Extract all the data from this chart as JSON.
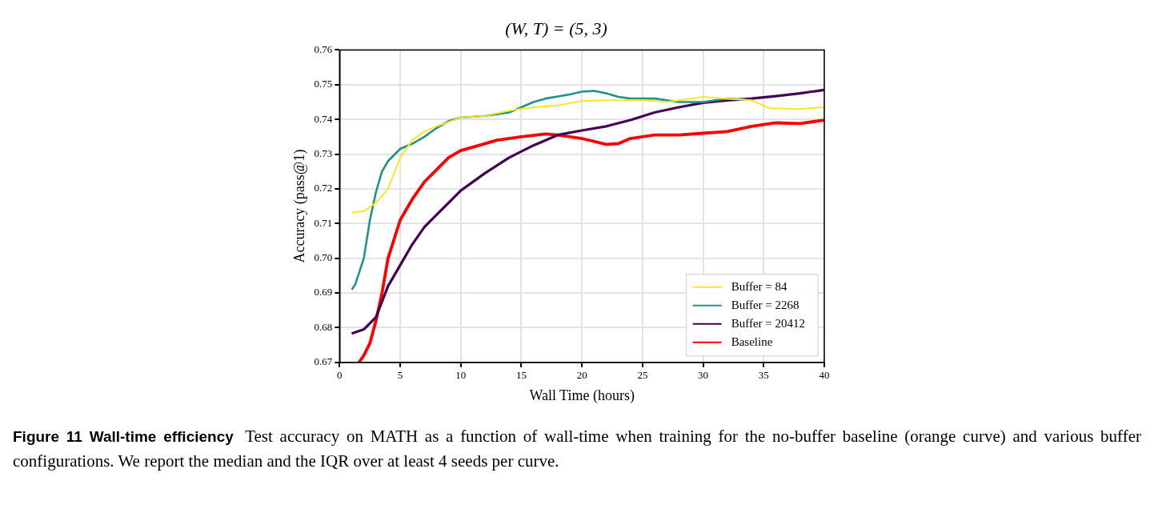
{
  "chart_data": {
    "type": "line",
    "title": "(W, T) = (5, 3)",
    "xlabel": "Wall Time (hours)",
    "ylabel": "Accuracy (pass@1)",
    "xlim": [
      0,
      40
    ],
    "xticks": [
      0,
      5,
      10,
      15,
      20,
      25,
      30,
      35,
      40
    ],
    "ylim": [
      0.67,
      0.76
    ],
    "yticks": [
      0.67,
      0.68,
      0.69,
      {
        "value": 0.7,
        "label": "0.70"
      },
      0.71,
      0.72,
      0.73,
      0.74,
      0.75,
      0.76
    ],
    "grid": true,
    "legend": "bottom right",
    "marker": "none",
    "line_style": "solid",
    "series": [
      {
        "name": "Buffer = 84",
        "color": "#fde725",
        "x": [
          1,
          2,
          3,
          4,
          5,
          6,
          7,
          8,
          10,
          12,
          14,
          16,
          18,
          20,
          22,
          25,
          27,
          30,
          32,
          34,
          35.5,
          38,
          40
        ],
        "values": [
          0.7132,
          0.7135,
          0.716,
          0.72,
          0.729,
          0.734,
          0.7365,
          0.738,
          0.7405,
          0.741,
          0.7425,
          0.7435,
          0.744,
          0.7453,
          0.7455,
          0.7455,
          0.745,
          0.7465,
          0.746,
          0.7455,
          0.7432,
          0.743,
          0.7435
        ]
      },
      {
        "name": "Buffer = 2268",
        "color": "#21918c",
        "x": [
          1,
          1.3,
          2,
          2.5,
          3,
          3.5,
          4,
          5,
          6,
          7,
          8,
          9,
          10,
          12,
          13,
          14,
          15,
          16,
          17,
          19,
          20,
          21,
          22,
          23,
          24,
          26,
          28,
          30,
          31,
          32,
          33.5
        ],
        "values": [
          0.691,
          0.6925,
          0.7,
          0.711,
          0.719,
          0.725,
          0.728,
          0.7315,
          0.733,
          0.735,
          0.7375,
          0.7395,
          0.7405,
          0.741,
          0.7415,
          0.742,
          0.7435,
          0.745,
          0.746,
          0.7472,
          0.748,
          0.7482,
          0.7475,
          0.7465,
          0.746,
          0.746,
          0.745,
          0.745,
          0.7455,
          0.746,
          0.7457
        ]
      },
      {
        "name": "Buffer = 20412",
        "color": "#440154",
        "x": [
          1,
          2,
          3,
          3.5,
          4,
          5,
          6,
          7,
          8,
          9,
          10,
          12,
          14,
          16,
          18,
          20,
          22,
          24,
          26,
          28,
          30,
          32,
          34,
          36,
          38,
          40
        ],
        "values": [
          0.6783,
          0.6795,
          0.683,
          0.6875,
          0.692,
          0.698,
          0.704,
          0.709,
          0.7125,
          0.716,
          0.7195,
          0.7245,
          0.729,
          0.7325,
          0.7355,
          0.7368,
          0.738,
          0.7398,
          0.742,
          0.7435,
          0.7448,
          0.7455,
          0.746,
          0.7467,
          0.7475,
          0.7485
        ]
      },
      {
        "name": "Baseline",
        "color": "#ff0000",
        "x": [
          1.6,
          2,
          2.5,
          3,
          3.5,
          4,
          5,
          6,
          7,
          8,
          9,
          10,
          11,
          13,
          15,
          17,
          18,
          20,
          22,
          23,
          24,
          26,
          28,
          30,
          32,
          34,
          36,
          38,
          40
        ],
        "values": [
          0.67,
          0.672,
          0.6755,
          0.682,
          0.69,
          0.7,
          0.711,
          0.717,
          0.722,
          0.7255,
          0.729,
          0.731,
          0.732,
          0.734,
          0.735,
          0.7358,
          0.7355,
          0.7345,
          0.7328,
          0.733,
          0.7345,
          0.7355,
          0.7355,
          0.736,
          0.7365,
          0.738,
          0.739,
          0.7388,
          0.7398
        ]
      }
    ],
    "annotations": [
      "Figure 11  Wall-time efficiency",
      "Test accuracy on MATH as a function of wall-time when training for the no-buffer baseline (orange curve) and various buffer configurations. We report the median and the IQR over at least 4 seeds per curve."
    ]
  }
}
